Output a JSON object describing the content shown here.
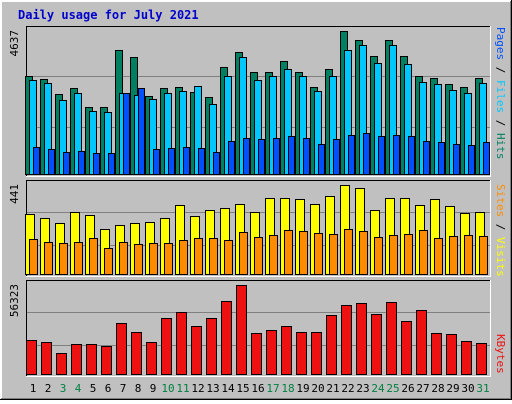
{
  "chart_data": {
    "type": "bar",
    "title": "Daily usage for July 2021",
    "days": [
      "1",
      "2",
      "3",
      "4",
      "5",
      "6",
      "7",
      "8",
      "9",
      "10",
      "11",
      "12",
      "13",
      "14",
      "15",
      "16",
      "17",
      "18",
      "19",
      "20",
      "21",
      "22",
      "23",
      "24",
      "25",
      "26",
      "27",
      "28",
      "29",
      "30",
      "31"
    ],
    "weekend_days": [
      "3",
      "4",
      "10",
      "11",
      "17",
      "18",
      "24",
      "25",
      "31"
    ],
    "colors": {
      "title": "#0000cc",
      "background": "#c0c0c0",
      "hits": "#008060",
      "files": "#00c8ff",
      "pages": "#0050ff",
      "visits": "#ffff00",
      "sites": "#ff8c00",
      "kbytes": "#ee1111",
      "weekday_label": "#000000",
      "weekend_label": "#008040"
    },
    "panels": {
      "requests": {
        "max_label": "4637",
        "max": 4637,
        "legend": [
          {
            "label": "Hits",
            "color": "#008060"
          },
          {
            "label": "Files",
            "color": "#00c8ff"
          },
          {
            "label": "Pages",
            "color": "#0050ff"
          }
        ],
        "hits": [
          3200,
          3100,
          2600,
          2800,
          2180,
          2180,
          4030,
          3800,
          2530,
          2800,
          2830,
          2680,
          2500,
          3480,
          3970,
          3320,
          3320,
          3660,
          3320,
          2840,
          3400,
          4637,
          4350,
          3820,
          4360,
          3820,
          3190,
          3110,
          2930,
          2840,
          3110
        ],
        "files": [
          3050,
          2950,
          2400,
          2650,
          2050,
          2030,
          2650,
          2580,
          2450,
          2650,
          2720,
          2870,
          2280,
          3200,
          3800,
          3050,
          3200,
          3410,
          3180,
          2690,
          3180,
          4020,
          4180,
          3600,
          4180,
          3580,
          2980,
          2920,
          2740,
          2650,
          2950
        ],
        "pages": [
          900,
          850,
          750,
          760,
          700,
          710,
          2650,
          2800,
          850,
          860,
          890,
          860,
          750,
          1100,
          1200,
          1150,
          1200,
          1250,
          1200,
          1000,
          1150,
          1300,
          1350,
          1250,
          1300,
          1250,
          1100,
          1050,
          1000,
          950,
          1050
        ]
      },
      "visitors": {
        "max_label": "441",
        "max": 441,
        "legend": [
          {
            "label": "Visits",
            "color": "#ffff00"
          },
          {
            "label": "Sites",
            "color": "#ff8c00"
          }
        ],
        "visits": [
          300,
          280,
          255,
          311,
          295,
          225,
          243,
          254,
          259,
          279,
          345,
          287,
          317,
          330,
          349,
          309,
          378,
          376,
          374,
          347,
          385,
          441,
          425,
          318,
          378,
          379,
          344,
          371,
          339,
          302,
          311
        ],
        "sites": [
          178,
          164,
          156,
          164,
          179,
          131,
          163,
          154,
          157,
          159,
          172,
          181,
          181,
          172,
          213,
          185,
          197,
          222,
          215,
          207,
          200,
          227,
          218,
          188,
          196,
          203,
          220,
          179,
          193,
          196,
          190
        ]
      },
      "kbytes": {
        "max_label": "56323",
        "max": 56323,
        "legend": [
          {
            "label": "KBytes",
            "color": "#ee1111"
          }
        ],
        "kbytes": [
          22200,
          20500,
          13800,
          19200,
          19200,
          18300,
          32300,
          27000,
          20600,
          35500,
          39600,
          30900,
          35500,
          46100,
          56323,
          26300,
          28300,
          30900,
          27000,
          27000,
          37500,
          43500,
          45000,
          37900,
          45500,
          33800,
          40700,
          26000,
          25500,
          21100,
          20000
        ]
      }
    }
  }
}
